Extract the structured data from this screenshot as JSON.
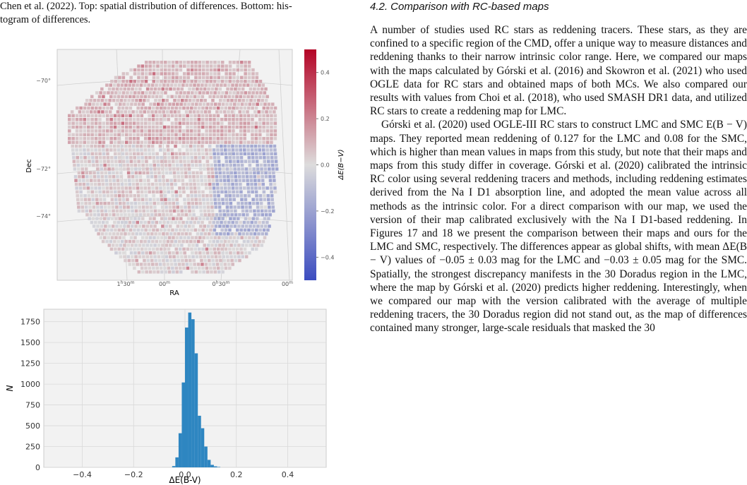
{
  "caption": {
    "line1": "Chen et al. (2022). Top: spatial distribution of differences. Bottom: his-",
    "line2": "togram of differences."
  },
  "section": {
    "heading": "4.2. Comparison with RC-based maps"
  },
  "paragraphs": [
    "A number of studies used RC stars as reddening tracers. These stars, as they are confined to a specific region of the CMD, offer a unique way to measure distances and reddening thanks to their narrow intrinsic color range. Here, we compared our maps with the maps calculated by Górski et al. (2016) and Skowron et al. (2021) who used OGLE data for RC stars and obtained maps of both MCs. We also compared our results with values from Choi et al. (2018), who used SMASH DR1 data, and utilized RC stars to create a reddening map for LMC.",
    "Górski et al. (2020) used OGLE-III RC stars to construct LMC and SMC E(B − V) maps. They reported mean reddening of 0.127 for the LMC and 0.08 for the SMC, which is higher than mean values in maps from this study, but note that their maps and maps from this study differ in coverage. Górski et al. (2020) calibrated the intrinsic RC color using several reddening tracers and methods, including reddening estimates derived from the Na I D1 absorption line, and adopted the mean value across all methods as the intrinsic color. For a direct comparison with our map, we used the version of their map calibrated exclusively with the Na I D1-based reddening. In Figures 17 and 18 we present the comparison between their maps and ours for the LMC and SMC, respectively. The differences appear as global shifts, with mean ΔE(B − V) values of −0.05 ± 0.03 mag for the LMC and −0.03 ± 0.05 mag for the SMC. Spatially, the strongest discrepancy manifests in the 30 Doradus region in the LMC, where the map by Górski et al. (2020) predicts higher reddening. Interestingly, when we compared our map with the version calibrated with the average of multiple reddening tracers, the 30 Doradus region did not stand out, as the map of differences contained many stronger, large-scale residuals that masked the 30"
  ],
  "chart_data": [
    {
      "type": "heatmap",
      "xlabel": "RA",
      "ylabel": "Dec",
      "x_ticks": [
        "1h30m",
        "00m",
        "0h30m",
        "00m"
      ],
      "y_ticks": [
        "−70°",
        "−72°",
        "−74°"
      ],
      "colorbar": {
        "label": "ΔE(B−V)",
        "range": [
          -0.5,
          0.5
        ],
        "ticks": [
          "0.4",
          "0.2",
          "0.0",
          "−0.2",
          "−0.4"
        ],
        "colors": [
          "#3b4cc0",
          "#dddcdc",
          "#b40426"
        ]
      },
      "grid": true
    },
    {
      "type": "bar",
      "xlabel": "ΔE(B-V)",
      "ylabel": "N",
      "xlim": [
        -0.55,
        0.55
      ],
      "ylim": [
        0,
        1900
      ],
      "x_ticks": [
        "−0.4",
        "−0.2",
        "0.0",
        "0.2",
        "0.4"
      ],
      "y_ticks": [
        "0",
        "250",
        "500",
        "750",
        "1000",
        "1250",
        "1500",
        "1750"
      ],
      "bar_color": "#2e86c1",
      "bin_width": 0.0125,
      "bin_starts": [
        -0.05,
        -0.0375,
        -0.025,
        -0.0125,
        0.0,
        0.0125,
        0.025,
        0.0375,
        0.05,
        0.0625,
        0.075,
        0.0875,
        0.1,
        0.1125,
        0.125
      ],
      "values": [
        15,
        120,
        410,
        1020,
        1680,
        1860,
        1780,
        1370,
        620,
        470,
        250,
        90,
        30,
        12,
        5
      ]
    }
  ]
}
